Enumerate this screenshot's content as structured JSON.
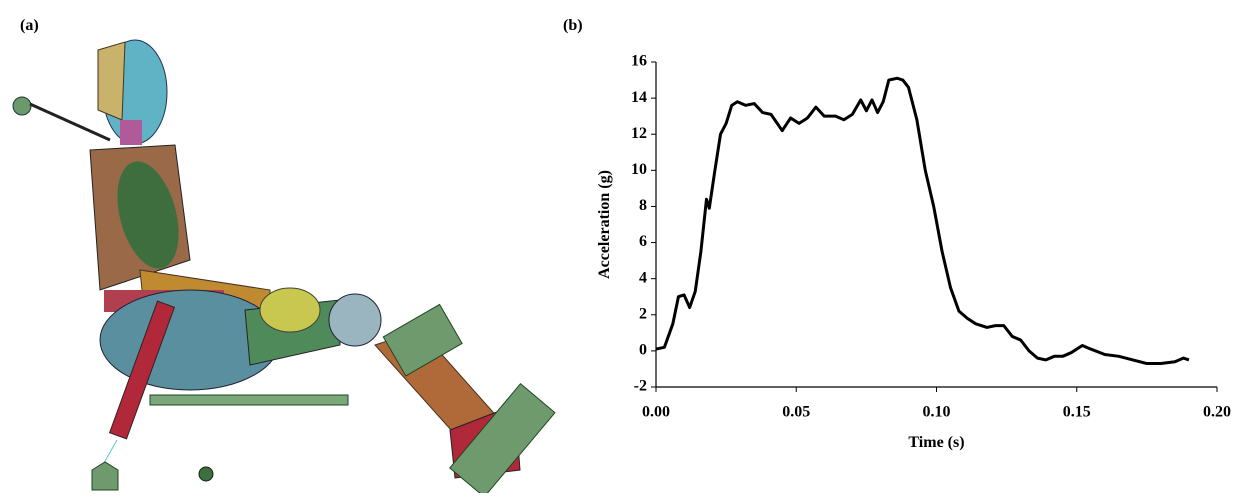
{
  "panels": {
    "a": {
      "label": "(a)"
    },
    "b": {
      "label": "(b)"
    }
  },
  "chart_data": {
    "type": "line",
    "x_label": "Time (s)",
    "y_label": "Acceleration (g)",
    "xlim": [
      0,
      0.2
    ],
    "xticks": [
      {
        "value": 0,
        "label": "0.00"
      },
      {
        "value": 0.05,
        "label": "0.05"
      },
      {
        "value": 0.1,
        "label": "0.10"
      },
      {
        "value": 0.15,
        "label": "0.15"
      },
      {
        "value": 0.2,
        "label": "0.20"
      }
    ],
    "ylim": [
      -2,
      16
    ],
    "yticks": [
      -2,
      0,
      2,
      4,
      6,
      8,
      10,
      12,
      14,
      16
    ],
    "grid": false,
    "series": [
      {
        "color": "#000000",
        "x": [
          0.0,
          0.003,
          0.006,
          0.008,
          0.01,
          0.012,
          0.014,
          0.016,
          0.018,
          0.019,
          0.021,
          0.023,
          0.025,
          0.027,
          0.029,
          0.032,
          0.035,
          0.038,
          0.041,
          0.045,
          0.048,
          0.051,
          0.054,
          0.057,
          0.06,
          0.064,
          0.067,
          0.07,
          0.073,
          0.075,
          0.077,
          0.079,
          0.081,
          0.083,
          0.086,
          0.088,
          0.09,
          0.093,
          0.096,
          0.099,
          0.102,
          0.105,
          0.108,
          0.111,
          0.114,
          0.118,
          0.121,
          0.124,
          0.127,
          0.13,
          0.133,
          0.136,
          0.139,
          0.142,
          0.145,
          0.148,
          0.152,
          0.155,
          0.16,
          0.165,
          0.17,
          0.175,
          0.18,
          0.185,
          0.188,
          0.19
        ],
        "values": [
          0.1,
          0.2,
          1.5,
          3.0,
          3.1,
          2.4,
          3.3,
          5.5,
          8.4,
          7.9,
          10.0,
          12.0,
          12.6,
          13.6,
          13.8,
          13.6,
          13.7,
          13.2,
          13.1,
          12.2,
          12.9,
          12.6,
          12.9,
          13.5,
          13.0,
          13.0,
          12.8,
          13.1,
          13.9,
          13.3,
          13.9,
          13.2,
          13.8,
          15.0,
          15.1,
          15.0,
          14.6,
          12.8,
          10.0,
          8.0,
          5.5,
          3.5,
          2.2,
          1.8,
          1.5,
          1.3,
          1.4,
          1.4,
          0.8,
          0.6,
          0.0,
          -0.4,
          -0.5,
          -0.3,
          -0.3,
          -0.1,
          0.3,
          0.1,
          -0.2,
          -0.3,
          -0.5,
          -0.7,
          -0.7,
          -0.6,
          -0.4,
          -0.5
        ]
      }
    ]
  }
}
